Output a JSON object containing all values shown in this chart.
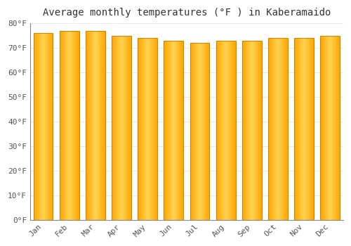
{
  "title": "Average monthly temperatures (°F ) in Kaberamaido",
  "months": [
    "Jan",
    "Feb",
    "Mar",
    "Apr",
    "May",
    "Jun",
    "Jul",
    "Aug",
    "Sep",
    "Oct",
    "Nov",
    "Dec"
  ],
  "values": [
    76,
    77,
    77,
    75,
    74,
    73,
    72,
    73,
    73,
    74,
    74,
    75
  ],
  "ylim": [
    0,
    80
  ],
  "yticks": [
    0,
    10,
    20,
    30,
    40,
    50,
    60,
    70,
    80
  ],
  "ytick_labels": [
    "0°F",
    "10°F",
    "20°F",
    "30°F",
    "40°F",
    "50°F",
    "60°F",
    "70°F",
    "80°F"
  ],
  "background_color": "#FFFFFF",
  "grid_color": "#E8E8E8",
  "title_fontsize": 10,
  "tick_fontsize": 8,
  "bar_color_center": "#FFD966",
  "bar_color_edge": "#FFA500",
  "bar_edge_color": "#CC8800",
  "font_family": "monospace",
  "bar_width": 0.75
}
